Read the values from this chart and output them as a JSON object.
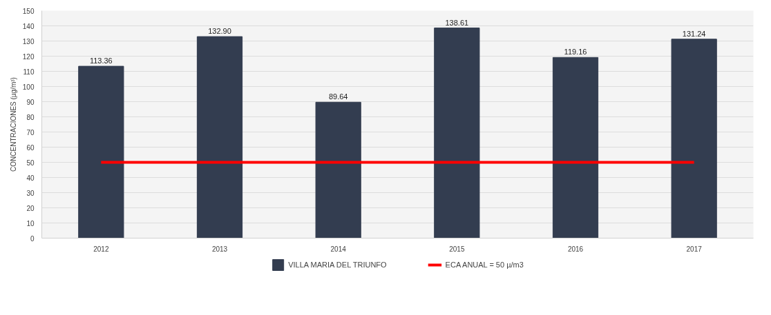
{
  "chart_data": {
    "type": "bar",
    "ylabel": "CONCENTRACIONES (µg/m³)",
    "categories": [
      "2012",
      "2013",
      "2014",
      "2015",
      "2016",
      "2017"
    ],
    "series": [
      {
        "name": "VILLA MARIA DEL TRIUNFO",
        "color": "#333d50",
        "values": [
          113.36,
          132.9,
          89.64,
          138.61,
          119.16,
          131.24
        ],
        "value_labels": [
          "113.36",
          "132.90",
          "89.64",
          "138.61",
          "119.16",
          "131.24"
        ]
      },
      {
        "name": "ECA ANUAL = 50 µ/m3",
        "type": "line",
        "color": "#ff0000",
        "values": [
          50,
          50,
          50,
          50,
          50,
          50
        ]
      }
    ],
    "ylim": [
      0,
      150
    ],
    "yticks": [
      0,
      10,
      20,
      30,
      40,
      50,
      60,
      70,
      80,
      90,
      100,
      110,
      120,
      130,
      140,
      150
    ],
    "grid": "y",
    "legend": "bottom",
    "line_style": "solid",
    "marker": "none"
  }
}
